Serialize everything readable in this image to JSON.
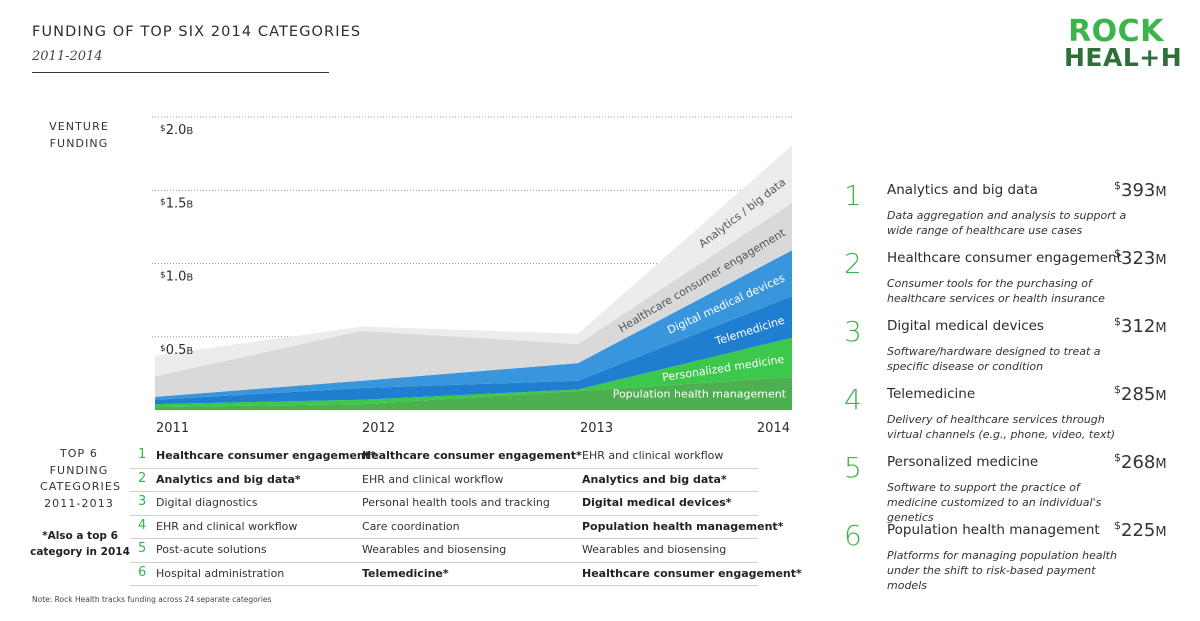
{
  "title": "FUNDING OF TOP SIX 2014 CATEGORIES",
  "subtitle": "2011-2014",
  "logo": {
    "line1": "ROCK",
    "line2": "HEAL+H"
  },
  "y_axis_header": "VENTURE FUNDING",
  "chart_data": {
    "type": "area",
    "x": [
      "2011",
      "2012",
      "2013",
      "2014"
    ],
    "ylim": [
      0,
      2.0
    ],
    "yticks": [
      0.5,
      1.0,
      1.5,
      2.0
    ],
    "ytick_labels": [
      {
        "prefix": "$",
        "num": "0.5",
        "suffix": "B"
      },
      {
        "prefix": "$",
        "num": "1.0",
        "suffix": "B"
      },
      {
        "prefix": "$",
        "num": "1.5",
        "suffix": "B"
      },
      {
        "prefix": "$",
        "num": "2.0",
        "suffix": "B"
      }
    ],
    "grid": "horizontal dotted",
    "stacked": true,
    "series": [
      {
        "name": "Population health management",
        "values": [
          0.02,
          0.04,
          0.13,
          0.225
        ],
        "color": "#4cb050"
      },
      {
        "name": "Personalized medicine",
        "values": [
          0.02,
          0.03,
          0.01,
          0.268
        ],
        "color": "#3cc84a"
      },
      {
        "name": "Telemedicine",
        "values": [
          0.03,
          0.08,
          0.06,
          0.285
        ],
        "color": "#1f7ecf"
      },
      {
        "name": "Digital medical devices",
        "values": [
          0.02,
          0.05,
          0.12,
          0.312
        ],
        "color": "#3a96dc"
      },
      {
        "name": "Healthcare consumer engagement",
        "values": [
          0.14,
          0.34,
          0.13,
          0.323
        ],
        "color": "#d9d9d9"
      },
      {
        "name": "Analytics / big data",
        "values": [
          0.14,
          0.03,
          0.07,
          0.393
        ],
        "color": "#ececec"
      }
    ]
  },
  "table": {
    "header": "TOP 6 FUNDING CATEGORIES 2011-2013",
    "note": "*Also a top 6 category in 2014",
    "rows": [
      {
        "rank": "1",
        "cells": [
          {
            "text": "Healthcare consumer engagement*",
            "bold": true
          },
          {
            "text": "Healthcare consumer engagement*",
            "bold": true
          },
          {
            "text": "EHR and clinical workflow",
            "bold": false
          }
        ]
      },
      {
        "rank": "2",
        "cells": [
          {
            "text": "Analytics and big data*",
            "bold": true
          },
          {
            "text": "EHR and clinical workflow",
            "bold": false
          },
          {
            "text": "Analytics and big data*",
            "bold": true
          }
        ]
      },
      {
        "rank": "3",
        "cells": [
          {
            "text": "Digital diagnostics",
            "bold": false
          },
          {
            "text": "Personal health tools and tracking",
            "bold": false
          },
          {
            "text": "Digital medical devices*",
            "bold": true
          }
        ]
      },
      {
        "rank": "4",
        "cells": [
          {
            "text": "EHR and clinical workflow",
            "bold": false
          },
          {
            "text": "Care coordination",
            "bold": false
          },
          {
            "text": "Population health management*",
            "bold": true
          }
        ]
      },
      {
        "rank": "5",
        "cells": [
          {
            "text": "Post-acute solutions",
            "bold": false
          },
          {
            "text": "Wearables and biosensing",
            "bold": false
          },
          {
            "text": "Wearables and biosensing",
            "bold": false
          }
        ]
      },
      {
        "rank": "6",
        "cells": [
          {
            "text": "Hospital administration",
            "bold": false
          },
          {
            "text": "Telemedicine*",
            "bold": true
          },
          {
            "text": "Healthcare consumer engagement*",
            "bold": true
          }
        ]
      }
    ]
  },
  "ranking": [
    {
      "rank": "1",
      "title": "Analytics and big data",
      "desc": "Data aggregation and analysis to support a wide range of healthcare use cases",
      "prefix": "$",
      "amount": "393",
      "unit": "M"
    },
    {
      "rank": "2",
      "title": "Healthcare consumer engagement",
      "desc": "Consumer tools for the purchasing of healthcare services or health insurance",
      "prefix": "$",
      "amount": "323",
      "unit": "M"
    },
    {
      "rank": "3",
      "title": "Digital medical devices",
      "desc": "Software/hardware designed to treat a specific disease or condition",
      "prefix": "$",
      "amount": "312",
      "unit": "M"
    },
    {
      "rank": "4",
      "title": "Telemedicine",
      "desc": "Delivery of healthcare services through virtual channels (e.g., phone, video, text)",
      "prefix": "$",
      "amount": "285",
      "unit": "M"
    },
    {
      "rank": "5",
      "title": "Personalized medicine",
      "desc": "Software to support the practice of medicine customized to an individual's genetics",
      "prefix": "$",
      "amount": "268",
      "unit": "M"
    },
    {
      "rank": "6",
      "title": "Population health management",
      "desc": "Platforms for managing population health under the shift to risk-based payment models",
      "prefix": "$",
      "amount": "225",
      "unit": "M"
    }
  ],
  "footnote": "Note: Rock Health tracks funding across 24 separate categories"
}
